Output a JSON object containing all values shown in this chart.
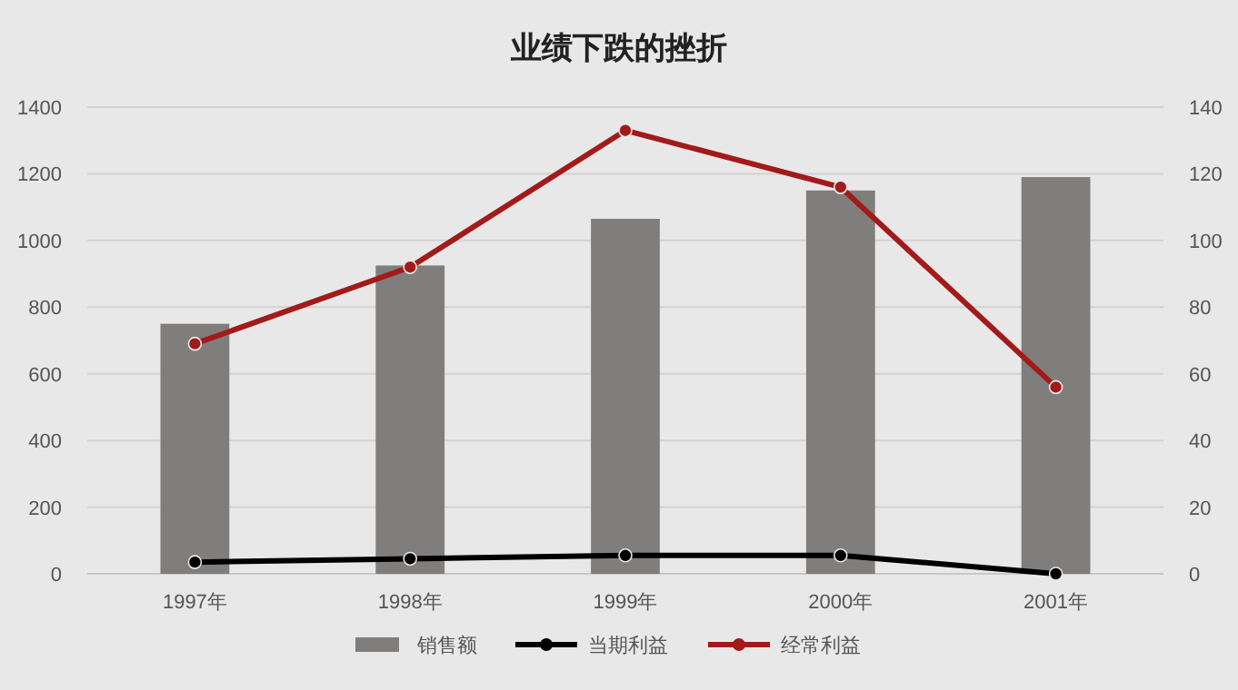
{
  "chart_data": {
    "type": "bar",
    "title": "业绩下跌的挫折",
    "categories": [
      "1997年",
      "1998年",
      "1999年",
      "2000年",
      "2001年"
    ],
    "series": [
      {
        "name": "销售额",
        "color": "#807d7d",
        "values": [
          750,
          925,
          1065,
          1150,
          1190
        ]
      },
      {
        "name": "当期利益",
        "type": "line",
        "axis": "y2",
        "color": "#000000",
        "values": [
          3.5,
          4.5,
          5.5,
          5.5,
          0
        ]
      },
      {
        "name": "经常利益",
        "type": "line",
        "axis": "y2",
        "color": "#a31a1a",
        "values": [
          69,
          92,
          133,
          116,
          56
        ]
      }
    ],
    "ylim": [
      0,
      1400
    ],
    "yticks": [
      0,
      200,
      400,
      600,
      800,
      1000,
      1200,
      1400
    ],
    "y2lim": [
      0,
      140
    ],
    "y2ticks": [
      0,
      20,
      40,
      60,
      80,
      100,
      120,
      140
    ],
    "grid": "y",
    "legend": "bottom",
    "marker": "circle"
  }
}
